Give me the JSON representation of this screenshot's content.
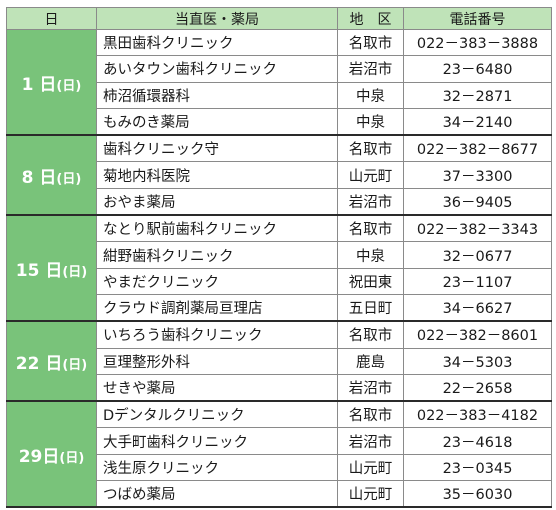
{
  "header": {
    "day": "日",
    "facility": "当直医・薬局",
    "area": "地　区",
    "phone": "電話番号"
  },
  "groups": [
    {
      "day_num": "1 日",
      "weekday": "(日)",
      "rows": [
        {
          "name": "黒田歯科クリニック",
          "area": "名取市",
          "phone": "022－383－3888"
        },
        {
          "name": "あいタウン歯科クリニック",
          "area": "岩沼市",
          "phone": "23－6480"
        },
        {
          "name": "柿沼循環器科",
          "area": "中泉",
          "phone": "32－2871"
        },
        {
          "name": "もみのき薬局",
          "area": "中泉",
          "phone": "34－2140"
        }
      ]
    },
    {
      "day_num": "8 日",
      "weekday": "(日)",
      "rows": [
        {
          "name": "歯科クリニック守",
          "area": "名取市",
          "phone": "022－382－8677"
        },
        {
          "name": "菊地内科医院",
          "area": "山元町",
          "phone": "37－3300"
        },
        {
          "name": "おやま薬局",
          "area": "岩沼市",
          "phone": "36－9405"
        }
      ]
    },
    {
      "day_num": "15 日",
      "weekday": "(日)",
      "rows": [
        {
          "name": "なとり駅前歯科クリニック",
          "area": "名取市",
          "phone": "022－382－3343"
        },
        {
          "name": "紺野歯科クリニック",
          "area": "中泉",
          "phone": "32－0677"
        },
        {
          "name": "やまだクリニック",
          "area": "祝田東",
          "phone": "23－1107"
        },
        {
          "name": "クラウド調剤薬局亘理店",
          "area": "五日町",
          "phone": "34－6627"
        }
      ]
    },
    {
      "day_num": "22 日",
      "weekday": "(日)",
      "rows": [
        {
          "name": "いちろう歯科クリニック",
          "area": "名取市",
          "phone": "022－382－8601"
        },
        {
          "name": "亘理整形外科",
          "area": "鹿島",
          "phone": "34－5303"
        },
        {
          "name": "せきや薬局",
          "area": "岩沼市",
          "phone": "22－2658"
        }
      ]
    },
    {
      "day_num": "29日",
      "weekday": "(日)",
      "rows": [
        {
          "name": "Dデンタルクリニック",
          "area": "名取市",
          "phone": "022－383－4182"
        },
        {
          "name": "大手町歯科クリニック",
          "area": "岩沼市",
          "phone": "23－4618"
        },
        {
          "name": "浅生原クリニック",
          "area": "山元町",
          "phone": "23－0345"
        },
        {
          "name": "つばめ薬局",
          "area": "山元町",
          "phone": "35－6030"
        }
      ]
    }
  ],
  "colors": {
    "header_bg": "#bfe3b8",
    "day_bg": "#79c37a",
    "day_text": "#ffffff"
  }
}
